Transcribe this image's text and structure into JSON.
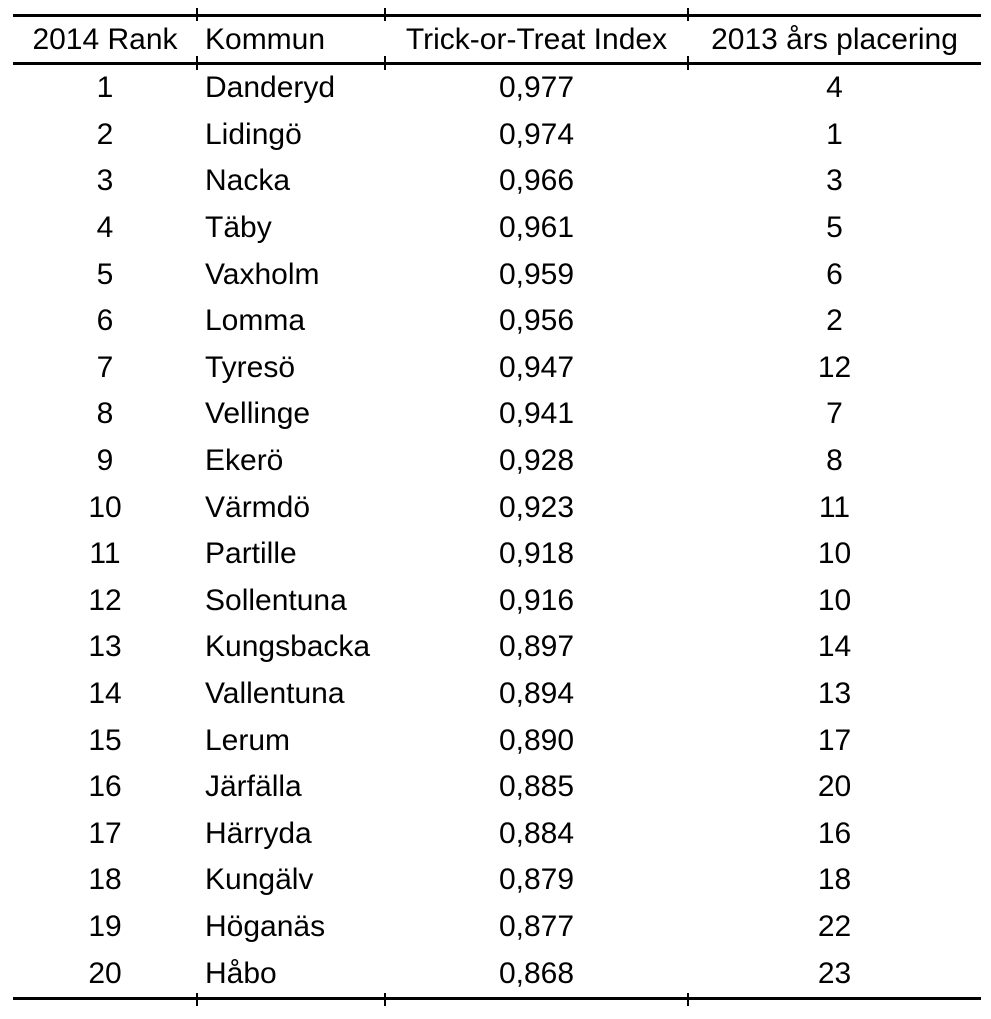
{
  "chart_data": {
    "type": "table",
    "columns": [
      "2014 Rank",
      "Kommun",
      "Trick-or-Treat Index",
      "2013 års placering"
    ],
    "rows": [
      [
        "1",
        "Danderyd",
        "0,977",
        "4"
      ],
      [
        "2",
        "Lidingö",
        "0,974",
        "1"
      ],
      [
        "3",
        "Nacka",
        "0,966",
        "3"
      ],
      [
        "4",
        "Täby",
        "0,961",
        "5"
      ],
      [
        "5",
        "Vaxholm",
        "0,959",
        "6"
      ],
      [
        "6",
        "Lomma",
        "0,956",
        "2"
      ],
      [
        "7",
        "Tyresö",
        "0,947",
        "12"
      ],
      [
        "8",
        "Vellinge",
        "0,941",
        "7"
      ],
      [
        "9",
        "Ekerö",
        "0,928",
        "8"
      ],
      [
        "10",
        "Värmdö",
        "0,923",
        "11"
      ],
      [
        "11",
        "Partille",
        "0,918",
        "10"
      ],
      [
        "12",
        "Sollentuna",
        "0,916",
        "10"
      ],
      [
        "13",
        "Kungsbacka",
        "0,897",
        "14"
      ],
      [
        "14",
        "Vallentuna",
        "0,894",
        "13"
      ],
      [
        "15",
        "Lerum",
        "0,890",
        "17"
      ],
      [
        "16",
        "Järfälla",
        "0,885",
        "20"
      ],
      [
        "17",
        "Härryda",
        "0,884",
        "16"
      ],
      [
        "18",
        "Kungälv",
        "0,879",
        "18"
      ],
      [
        "19",
        "Höganäs",
        "0,877",
        "22"
      ],
      [
        "20",
        "Håbo",
        "0,868",
        "23"
      ]
    ],
    "layout_hints": {
      "grid": "horizontal rules only (top, below header, bottom)",
      "decimal_separator": ","
    }
  },
  "colors": {
    "text": "#000000",
    "background": "#ffffff",
    "rule": "#000000"
  }
}
